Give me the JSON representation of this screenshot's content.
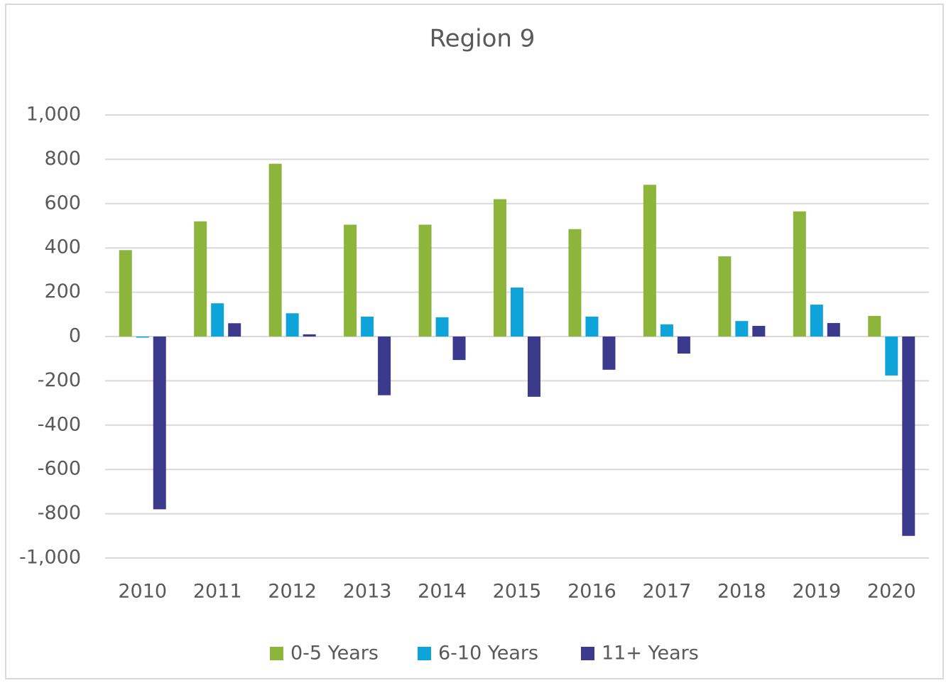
{
  "chart_data": {
    "type": "bar",
    "title": "Region 9",
    "categories": [
      "2010",
      "2011",
      "2012",
      "2013",
      "2014",
      "2015",
      "2016",
      "2017",
      "2018",
      "2019",
      "2020"
    ],
    "series": [
      {
        "name": "0-5 Years",
        "color": "#8db53c",
        "values": [
          390,
          520,
          780,
          505,
          505,
          620,
          485,
          685,
          362,
          565,
          93
        ]
      },
      {
        "name": "6-10 Years",
        "color": "#0fa4d9",
        "values": [
          -5,
          150,
          105,
          90,
          87,
          221,
          90,
          55,
          70,
          144,
          -176
        ]
      },
      {
        "name": "11+ Years",
        "color": "#3b3a8c",
        "values": [
          -780,
          60,
          10,
          -265,
          -106,
          -272,
          -150,
          -77,
          48,
          61,
          -900
        ]
      }
    ],
    "ylim": [
      -1000,
      1000
    ],
    "yticks": [
      {
        "value": -1000,
        "label": "-1,000"
      },
      -800,
      -600,
      -400,
      -200,
      0,
      200,
      400,
      600,
      800,
      {
        "value": 1000,
        "label": "1,000"
      }
    ],
    "grid": true,
    "legend": "bottom"
  }
}
